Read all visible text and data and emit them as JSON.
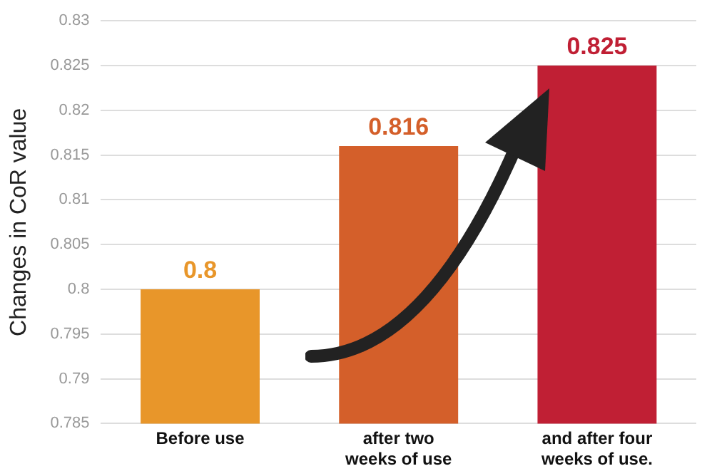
{
  "chart_data": {
    "type": "bar",
    "ylabel": "Changes in CoR value",
    "categories": [
      "Before use",
      "after two weeks of use",
      "and after four weeks of use."
    ],
    "values": [
      0.8,
      0.816,
      0.825
    ],
    "colors": [
      "#e8962a",
      "#d45f2a",
      "#c01f34"
    ],
    "ylim": [
      0.785,
      0.83
    ],
    "yticks": [
      0.785,
      0.79,
      0.795,
      0.8,
      0.805,
      0.81,
      0.815,
      0.82,
      0.825,
      0.83
    ],
    "grid": "y",
    "data_labels": true,
    "legend": false
  }
}
